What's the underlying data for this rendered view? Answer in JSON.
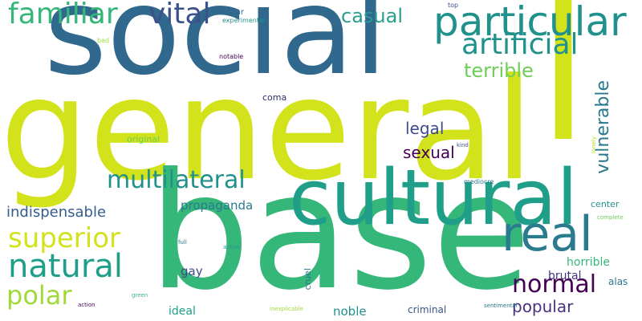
{
  "colors": {
    "background": "#ffffff",
    "dark_purple": "#440154",
    "indigo": "#46327e",
    "deep_blue": "#31688e",
    "slate_blue": "#365c8d",
    "teal": "#21918c",
    "teal_dark": "#1f9e89",
    "sea_green": "#2ab07f",
    "green": "#35b779",
    "light_green": "#6ece58",
    "lime": "#9fda3a",
    "yellow_green": "#d2e21b"
  },
  "words": [
    {
      "id": "general",
      "text": "general",
      "color": "#d2e21b"
    },
    {
      "id": "social",
      "text": "social",
      "color": "#31688e"
    },
    {
      "id": "base",
      "text": "base",
      "color": "#35b779"
    },
    {
      "id": "l",
      "text": "l",
      "color": "#d2e21b"
    },
    {
      "id": "cultural",
      "text": "cultural",
      "color": "#1f9e89"
    },
    {
      "id": "particular",
      "text": "particular",
      "color": "#21918c"
    },
    {
      "id": "real",
      "text": "real",
      "color": "#2a7b8e"
    },
    {
      "id": "familiar",
      "text": "familiar",
      "color": "#35b779"
    },
    {
      "id": "vital",
      "text": "vital",
      "color": "#3b528b"
    },
    {
      "id": "artificial",
      "text": "artificial",
      "color": "#21918c"
    },
    {
      "id": "natural",
      "text": "natural",
      "color": "#1f9e89"
    },
    {
      "id": "superior",
      "text": "superior",
      "color": "#d2e21b"
    },
    {
      "id": "multilateral",
      "text": "multilateral",
      "color": "#21918c"
    },
    {
      "id": "polar",
      "text": "polar",
      "color": "#9fda3a"
    },
    {
      "id": "normal",
      "text": "normal",
      "color": "#440154"
    },
    {
      "id": "casual",
      "text": "casual",
      "color": "#2a9d8f"
    },
    {
      "id": "terrible",
      "text": "terrible",
      "color": "#6ece58"
    },
    {
      "id": "vulnerable",
      "text": "vulnerable",
      "color": "#2a788e"
    },
    {
      "id": "legal",
      "text": "legal",
      "color": "#3e4a89"
    },
    {
      "id": "sexual",
      "text": "sexual",
      "color": "#440154"
    },
    {
      "id": "indispensable",
      "text": "indispensable",
      "color": "#365c8d"
    },
    {
      "id": "popular",
      "text": "popular",
      "color": "#46327e"
    },
    {
      "id": "propaganda",
      "text": "propaganda",
      "color": "#2a788e"
    },
    {
      "id": "noble",
      "text": "noble",
      "color": "#21918c"
    },
    {
      "id": "horrible",
      "text": "horrible",
      "color": "#35b779"
    },
    {
      "id": "brutal",
      "text": "brutal",
      "color": "#46327e"
    },
    {
      "id": "gay",
      "text": "gay",
      "color": "#3e4a89"
    },
    {
      "id": "ideal",
      "text": "ideal",
      "color": "#1f9e89"
    },
    {
      "id": "criminal",
      "text": "criminal",
      "color": "#3b528b"
    },
    {
      "id": "alas",
      "text": "alas",
      "color": "#2a788e"
    },
    {
      "id": "center",
      "text": "center",
      "color": "#21918c"
    },
    {
      "id": "cruel",
      "text": "cruel",
      "color": "#2a788e"
    },
    {
      "id": "coma",
      "text": "coma",
      "color": "#2c2d6b"
    },
    {
      "id": "original",
      "text": "original",
      "color": "#6ece58"
    },
    {
      "id": "titular",
      "text": "titular",
      "color": "#31688e"
    },
    {
      "id": "experimental",
      "text": "experimental",
      "color": "#21918c"
    },
    {
      "id": "top",
      "text": "top",
      "color": "#3b528b"
    },
    {
      "id": "bad",
      "text": "bad",
      "color": "#9fda3a"
    },
    {
      "id": "notable",
      "text": "notable",
      "color": "#440154"
    },
    {
      "id": "kind",
      "text": "kind",
      "color": "#3b528b"
    },
    {
      "id": "lonely",
      "text": "lonely",
      "color": "#b5de2b"
    },
    {
      "id": "mediocre",
      "text": "mediocre",
      "color": "#2a788e"
    },
    {
      "id": "complete",
      "text": "complete",
      "color": "#6ece58"
    },
    {
      "id": "full",
      "text": "full",
      "color": "#2a788e"
    },
    {
      "id": "active",
      "text": "active",
      "color": "#21918c"
    },
    {
      "id": "green",
      "text": "green",
      "color": "#35b779"
    },
    {
      "id": "action",
      "text": "action",
      "color": "#440154"
    },
    {
      "id": "inexplicable",
      "text": "inexplicable",
      "color": "#9fda3a"
    },
    {
      "id": "sentimental",
      "text": "sentimental",
      "color": "#2a788e"
    }
  ]
}
